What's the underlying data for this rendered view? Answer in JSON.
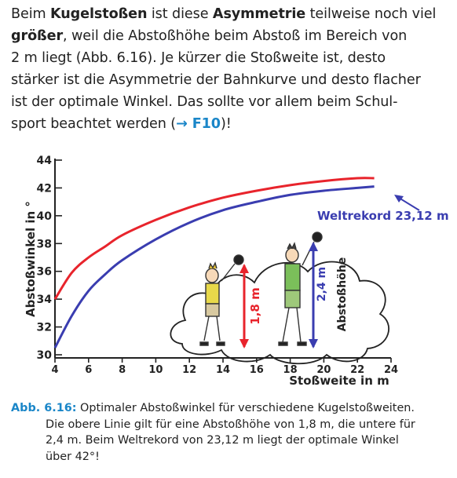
{
  "paragraph": {
    "l1a": "Beim ",
    "l1b": "Kugelstoßen",
    "l1c": " ist diese ",
    "l1d": "Asymmetrie",
    "l1e": " teilweise noch viel",
    "l2a": "größer",
    "l2b": ", weil die Abstoßhöhe beim Abstoß im Bereich von",
    "l3": "2 m liegt (Abb. 6.16). Je kürzer die Stoßweite ist, desto",
    "l4": "stärker ist die Asymmetrie der Bahnkurve und desto flacher",
    "l5": "ist der optimale Winkel. Das sollte vor allem beim Schul-",
    "l6a": "sport beachtet werden (",
    "l6b": "→ F10",
    "l6c": ")!"
  },
  "chart_data": {
    "type": "line",
    "xlabel": "Stoßweite in m",
    "ylabel": "Abstoßwinkel in °",
    "xlim": [
      4,
      24
    ],
    "ylim": [
      30,
      44
    ],
    "x_ticks": [
      "4",
      "6",
      "8",
      "10",
      "12",
      "14",
      "16",
      "18",
      "20",
      "22",
      "24"
    ],
    "y_ticks": [
      "30",
      "32",
      "34",
      "36",
      "38",
      "40",
      "42",
      "44"
    ],
    "series": [
      {
        "color": "#e8242c",
        "x": [
          4,
          5,
          6,
          7,
          8,
          10,
          12,
          14,
          16,
          18,
          20,
          22,
          23
        ],
        "y": [
          34.0,
          35.9,
          37.0,
          37.8,
          38.6,
          39.7,
          40.6,
          41.3,
          41.8,
          42.2,
          42.5,
          42.7,
          42.7
        ]
      },
      {
        "color": "#3a3db0",
        "x": [
          4,
          5,
          6,
          7,
          8,
          10,
          12,
          14,
          16,
          18,
          20,
          22,
          23
        ],
        "y": [
          30.5,
          32.8,
          34.6,
          35.8,
          36.8,
          38.3,
          39.5,
          40.4,
          41.0,
          41.5,
          41.8,
          42.0,
          42.1
        ]
      }
    ],
    "annotations": {
      "weltrekord": "Weltrekord 23,12 m",
      "hoehe1": "1,8 m",
      "hoehe2": "2,4 m",
      "abstosshoehe": "Abstoßhöhe"
    },
    "colors": {
      "red": "#e8242c",
      "blue": "#3a3db0",
      "axis": "#222222"
    }
  },
  "caption": {
    "label": "Abb. 6.16:",
    "line1": " Optimaler Abstoßwinkel für verschiedene Kugelstoßweiten.",
    "line2": "Die obere Linie gilt für eine Abstoßhöhe von 1,8 m, die untere für",
    "line3": "2,4 m. Beim Weltrekord von 23,12 m liegt der optimale Winkel",
    "line4": "über 42°!"
  }
}
